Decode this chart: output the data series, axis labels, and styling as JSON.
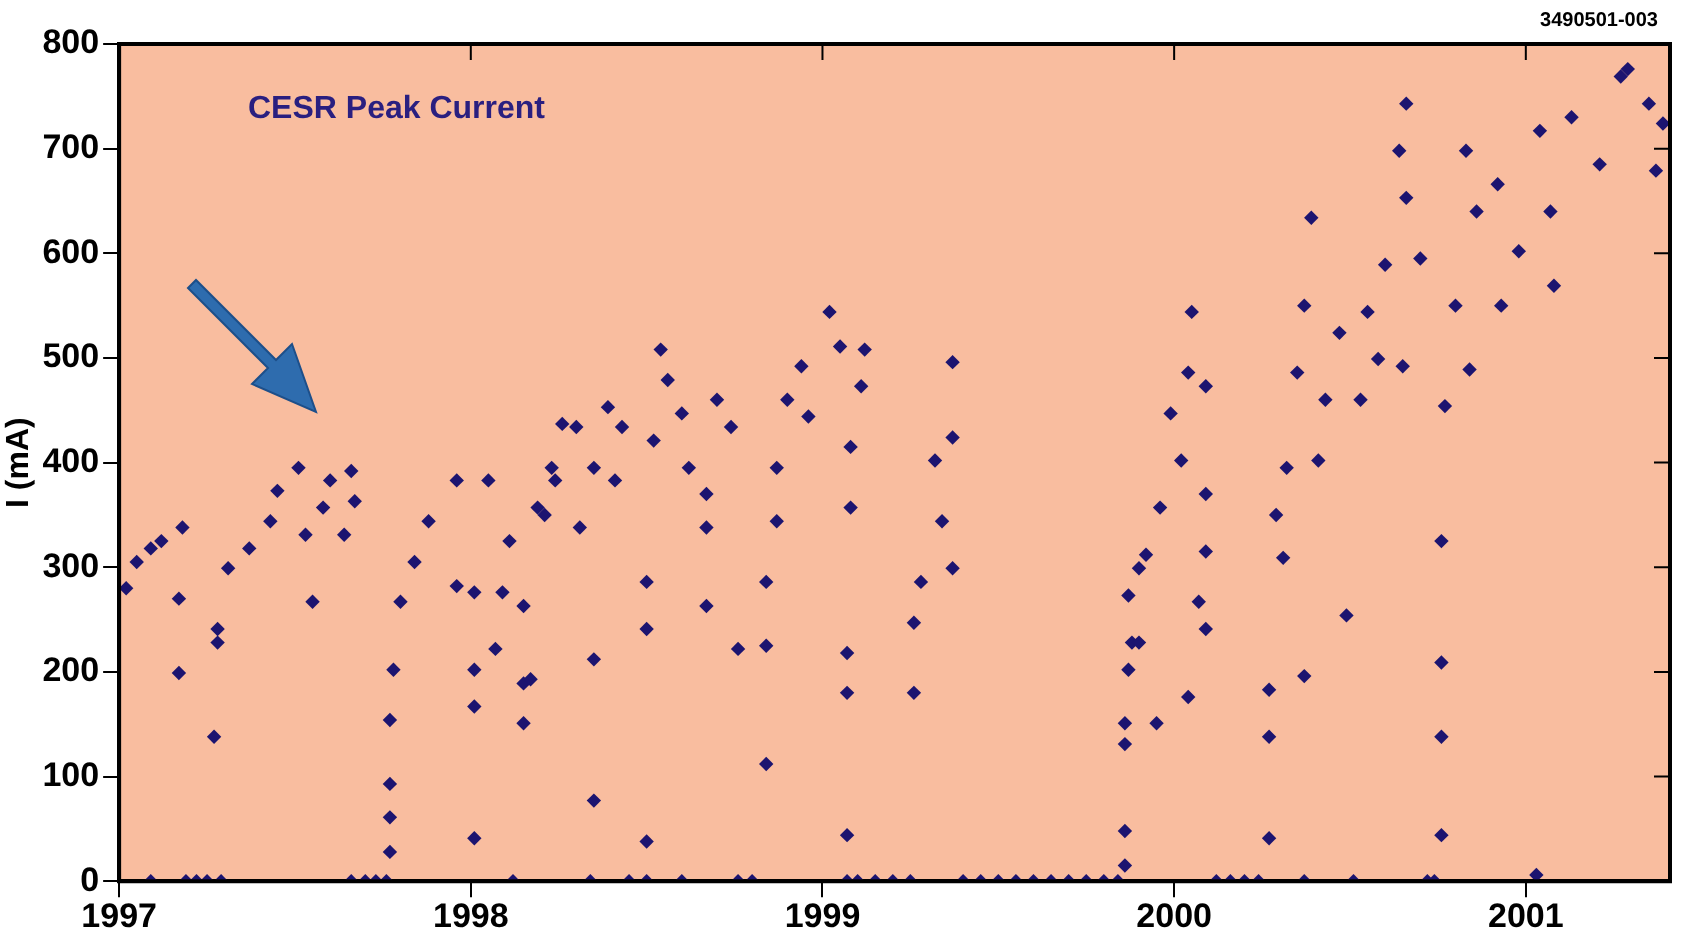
{
  "chart_data": {
    "type": "scatter",
    "title": "CESR Peak Current",
    "ylabel": "I (mA)",
    "annotations": [
      "3490501-003"
    ],
    "xlim": [
      1997,
      2001.41
    ],
    "xticks": [
      1997,
      1998,
      1999,
      2000,
      2001
    ],
    "ylim": [
      0,
      800
    ],
    "yticks": [
      0,
      100,
      200,
      300,
      400,
      500,
      600,
      700,
      800
    ],
    "grid": false,
    "legend": false,
    "marker": "diamond",
    "series": [
      {
        "color": "#1c1470",
        "x": [
          1997.02,
          1997.05,
          1997.09,
          1997.12,
          1997.18,
          1997.17,
          1997.17,
          1997.27,
          1997.28,
          1997.28,
          1997.31,
          1997.37,
          1997.43,
          1997.45,
          1997.51,
          1997.53,
          1997.55,
          1997.58,
          1997.6,
          1997.66,
          1997.67,
          1997.64,
          1997.09,
          1997.19,
          1997.22,
          1997.25,
          1997.29,
          1997.66,
          1997.7,
          1997.73,
          1997.76,
          1997.77,
          1997.77,
          1997.77,
          1997.77,
          1997.78,
          1997.8,
          1997.84,
          1997.88,
          1997.96,
          1997.96,
          1998.01,
          1998.01,
          1998.01,
          1998.01,
          1998.05,
          1998.07,
          1998.09,
          1998.11,
          1998.15,
          1998.15,
          1998.15,
          1998.12,
          1998.17,
          1998.19,
          1998.21,
          1998.23,
          1998.24,
          1998.26,
          1998.3,
          1998.31,
          1998.35,
          1998.35,
          1998.35,
          1998.39,
          1998.41,
          1998.43,
          1998.34,
          1998.45,
          1998.5,
          1998.5,
          1998.5,
          1998.5,
          1998.52,
          1998.54,
          1998.56,
          1998.6,
          1998.62,
          1998.6,
          1998.67,
          1998.67,
          1998.67,
          1998.7,
          1998.74,
          1998.76,
          1998.76,
          1998.8,
          1998.84,
          1998.84,
          1998.84,
          1998.87,
          1998.87,
          1998.9,
          1998.94,
          1998.96,
          1999.02,
          1999.05,
          1999.07,
          1999.07,
          1999.07,
          1999.07,
          1999.08,
          1999.08,
          1999.11,
          1999.12,
          1999.1,
          1999.15,
          1999.2,
          1999.25,
          1999.26,
          1999.26,
          1999.28,
          1999.32,
          1999.34,
          1999.37,
          1999.37,
          1999.37,
          1999.4,
          1999.45,
          1999.5,
          1999.55,
          1999.6,
          1999.65,
          1999.7,
          1999.75,
          1999.8,
          1999.84,
          1999.86,
          1999.86,
          1999.86,
          1999.86,
          1999.88,
          1999.9,
          1999.87,
          1999.87,
          1999.9,
          1999.92,
          1999.95,
          1999.96,
          1999.99,
          2000.02,
          2000.04,
          2000.04,
          2000.05,
          2000.07,
          2000.09,
          2000.09,
          2000.09,
          2000.09,
          2000.12,
          2000.16,
          2000.2,
          2000.24,
          2000.27,
          2000.27,
          2000.27,
          2000.29,
          2000.31,
          2000.32,
          2000.35,
          2000.37,
          2000.37,
          2000.37,
          2000.39,
          2000.41,
          2000.43,
          2000.47,
          2000.49,
          2000.51,
          2000.53,
          2000.55,
          2000.58,
          2000.6,
          2000.64,
          2000.66,
          2000.66,
          2000.65,
          2000.7,
          2000.72,
          2000.74,
          2000.76,
          2000.76,
          2000.76,
          2000.76,
          2000.77,
          2000.8,
          2000.83,
          2000.84,
          2000.86,
          2000.92,
          2000.93,
          2000.98,
          2001.03,
          2001.04,
          2001.07,
          2001.08,
          2001.13,
          2001.21,
          2001.27,
          2001.29,
          2001.35,
          2001.37,
          2001.39
        ],
        "values": [
          280,
          305,
          318,
          325,
          338,
          270,
          199,
          138,
          241,
          228,
          299,
          318,
          344,
          373,
          395,
          331,
          267,
          357,
          383,
          392,
          363,
          331,
          0,
          0,
          0,
          0,
          0,
          0,
          0,
          0,
          0,
          28,
          61,
          93,
          154,
          202,
          267,
          305,
          344,
          383,
          282,
          41,
          167,
          202,
          276,
          383,
          222,
          276,
          325,
          151,
          263,
          189,
          0,
          193,
          357,
          350,
          395,
          383,
          437,
          434,
          338,
          395,
          212,
          77,
          453,
          383,
          434,
          0,
          0,
          0,
          38,
          241,
          286,
          421,
          508,
          479,
          447,
          395,
          0,
          263,
          338,
          370,
          460,
          434,
          222,
          0,
          0,
          225,
          112,
          286,
          344,
          395,
          460,
          492,
          444,
          544,
          511,
          218,
          180,
          44,
          0,
          357,
          415,
          473,
          508,
          0,
          0,
          0,
          0,
          180,
          247,
          286,
          402,
          344,
          496,
          424,
          299,
          0,
          0,
          0,
          0,
          0,
          0,
          0,
          0,
          0,
          0,
          48,
          15,
          151,
          131,
          228,
          299,
          202,
          273,
          228,
          312,
          151,
          357,
          447,
          402,
          486,
          176,
          544,
          267,
          241,
          315,
          473,
          370,
          0,
          0,
          0,
          0,
          41,
          138,
          183,
          350,
          309,
          395,
          486,
          550,
          196,
          0,
          634,
          402,
          460,
          524,
          254,
          0,
          460,
          544,
          499,
          589,
          698,
          743,
          653,
          492,
          595,
          0,
          0,
          325,
          209,
          138,
          44,
          454,
          550,
          698,
          489,
          640,
          666,
          550,
          602,
          6,
          717,
          640,
          569,
          730,
          685,
          769,
          776,
          743,
          679,
          724
        ]
      }
    ]
  }
}
